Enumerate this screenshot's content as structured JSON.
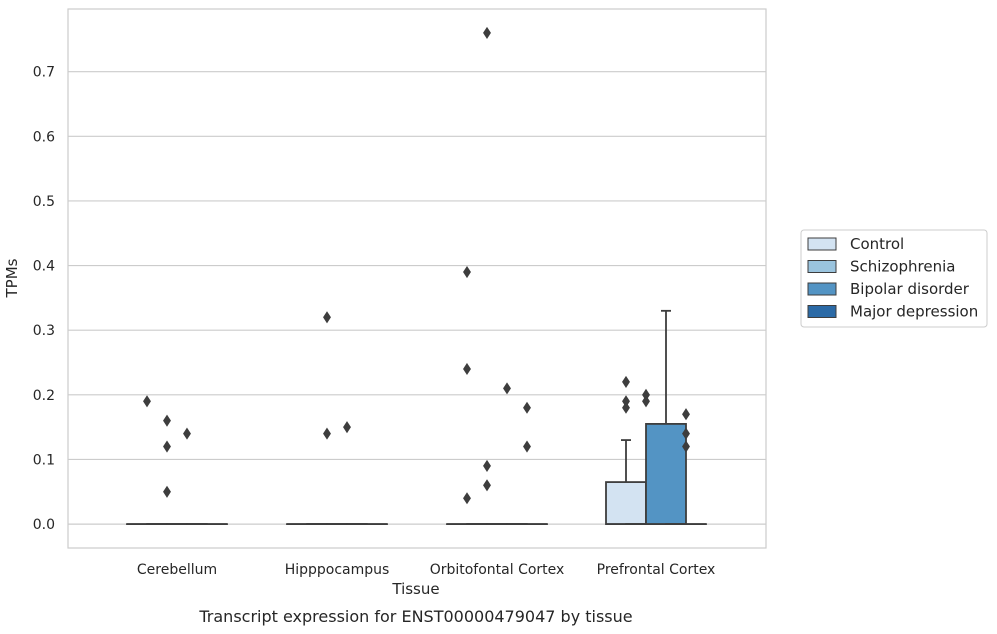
{
  "chart_data": {
    "type": "box",
    "title": "",
    "caption": "Transcript expression for ENST00000479047 by tissue",
    "xlabel": "Tissue",
    "ylabel": "TPMs",
    "ylim": [
      -0.037,
      0.797
    ],
    "yticks": [
      0.0,
      0.1,
      0.2,
      0.3,
      0.4,
      0.5,
      0.6,
      0.7
    ],
    "ytick_labels": [
      "0.0",
      "0.1",
      "0.2",
      "0.3",
      "0.4",
      "0.5",
      "0.6",
      "0.7"
    ],
    "grid": true,
    "legend_position": "right",
    "categories": [
      "Cerebellum",
      "Hipppocampus",
      "Orbitofontal Cortex",
      "Prefrontal Cortex"
    ],
    "series": [
      {
        "name": "Control",
        "color": "#d3e3f2",
        "boxes": [
          {
            "q1": 0,
            "median": 0,
            "q3": 0,
            "whislo": 0,
            "whishi": 0,
            "fliers": [
              0.19
            ]
          },
          {
            "q1": 0,
            "median": 0,
            "q3": 0,
            "whislo": 0,
            "whishi": 0,
            "fliers": []
          },
          {
            "q1": 0,
            "median": 0,
            "q3": 0,
            "whislo": 0,
            "whishi": 0,
            "fliers": [
              0.39,
              0.24,
              0.04
            ]
          },
          {
            "q1": 0,
            "median": 0,
            "q3": 0.065,
            "whislo": 0,
            "whishi": 0.13,
            "fliers": [
              0.22,
              0.19,
              0.18
            ]
          }
        ]
      },
      {
        "name": "Schizophrenia",
        "color": "#9ac4de",
        "boxes": [
          {
            "q1": 0,
            "median": 0,
            "q3": 0,
            "whislo": 0,
            "whishi": 0,
            "fliers": [
              0.16,
              0.12,
              0.05
            ]
          },
          {
            "q1": 0,
            "median": 0,
            "q3": 0,
            "whislo": 0,
            "whishi": 0,
            "fliers": [
              0.32,
              0.14
            ]
          },
          {
            "q1": 0,
            "median": 0,
            "q3": 0,
            "whislo": 0,
            "whishi": 0,
            "fliers": [
              0.76,
              0.09,
              0.06
            ]
          },
          {
            "q1": 0,
            "median": 0,
            "q3": 0,
            "whislo": 0,
            "whishi": 0,
            "fliers": [
              0.2,
              0.19
            ]
          }
        ]
      },
      {
        "name": "Bipolar disorder",
        "color": "#5394c4",
        "boxes": [
          {
            "q1": 0,
            "median": 0,
            "q3": 0,
            "whislo": 0,
            "whishi": 0,
            "fliers": [
              0.14
            ]
          },
          {
            "q1": 0,
            "median": 0,
            "q3": 0,
            "whislo": 0,
            "whishi": 0,
            "fliers": [
              0.15
            ]
          },
          {
            "q1": 0,
            "median": 0,
            "q3": 0,
            "whislo": 0,
            "whishi": 0,
            "fliers": [
              0.21
            ]
          },
          {
            "q1": 0,
            "median": 0,
            "q3": 0.155,
            "whislo": 0,
            "whishi": 0.33,
            "fliers": []
          }
        ]
      },
      {
        "name": "Major depression",
        "color": "#2b6aa6",
        "boxes": [
          {
            "q1": 0,
            "median": 0,
            "q3": 0,
            "whislo": 0,
            "whishi": 0,
            "fliers": []
          },
          {
            "q1": 0,
            "median": 0,
            "q3": 0,
            "whislo": 0,
            "whishi": 0,
            "fliers": []
          },
          {
            "q1": 0,
            "median": 0,
            "q3": 0,
            "whislo": 0,
            "whishi": 0,
            "fliers": [
              0.18,
              0.12
            ]
          },
          {
            "q1": 0,
            "median": 0,
            "q3": 0,
            "whislo": 0,
            "whishi": 0,
            "fliers": [
              0.17,
              0.14,
              0.12
            ]
          }
        ]
      }
    ]
  }
}
